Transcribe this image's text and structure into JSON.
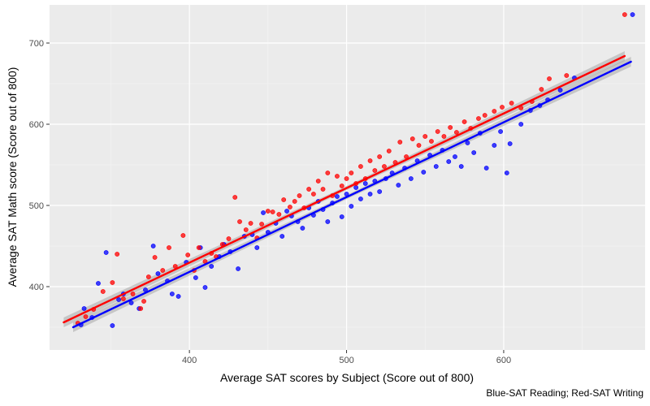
{
  "chart_data": {
    "type": "scatter",
    "title": "",
    "xlabel": "Average SAT scores by Subject (Score out of 800)",
    "ylabel": "Average SAT Math score (Score out of 800)",
    "caption": "Blue-SAT Reading; Red-SAT Writing",
    "xlim": [
      311,
      690
    ],
    "ylim": [
      322,
      747
    ],
    "x_ticks": [
      400,
      500,
      600
    ],
    "y_ticks": [
      400,
      500,
      600,
      700
    ],
    "grid": true,
    "panel_background": "#ebebeb",
    "series": [
      {
        "color": "#0000ff",
        "values": [
          [
            331,
            353
          ],
          [
            333,
            373
          ],
          [
            338,
            362
          ],
          [
            342,
            404
          ],
          [
            347,
            442
          ],
          [
            351,
            352
          ],
          [
            355,
            384
          ],
          [
            358,
            391
          ],
          [
            363,
            380
          ],
          [
            368,
            373
          ],
          [
            372,
            396
          ],
          [
            377,
            450
          ],
          [
            380,
            416
          ],
          [
            386,
            407
          ],
          [
            389,
            391
          ],
          [
            393,
            388
          ],
          [
            398,
            430
          ],
          [
            404,
            411
          ],
          [
            407,
            448
          ],
          [
            410,
            399
          ],
          [
            414,
            425
          ],
          [
            419,
            437
          ],
          [
            422,
            452
          ],
          [
            426,
            443
          ],
          [
            431,
            422
          ],
          [
            435,
            462
          ],
          [
            440,
            464
          ],
          [
            443,
            448
          ],
          [
            447,
            491
          ],
          [
            450,
            467
          ],
          [
            455,
            478
          ],
          [
            459,
            462
          ],
          [
            462,
            493
          ],
          [
            465,
            487
          ],
          [
            469,
            480
          ],
          [
            472,
            472
          ],
          [
            476,
            497
          ],
          [
            479,
            488
          ],
          [
            482,
            505
          ],
          [
            485,
            495
          ],
          [
            488,
            480
          ],
          [
            491,
            503
          ],
          [
            494,
            511
          ],
          [
            497,
            486
          ],
          [
            500,
            514
          ],
          [
            503,
            499
          ],
          [
            506,
            522
          ],
          [
            509,
            508
          ],
          [
            512,
            527
          ],
          [
            515,
            514
          ],
          [
            518,
            530
          ],
          [
            521,
            517
          ],
          [
            525,
            533
          ],
          [
            529,
            540
          ],
          [
            533,
            525
          ],
          [
            537,
            546
          ],
          [
            541,
            533
          ],
          [
            545,
            555
          ],
          [
            549,
            541
          ],
          [
            553,
            562
          ],
          [
            557,
            548
          ],
          [
            561,
            568
          ],
          [
            565,
            554
          ],
          [
            569,
            560
          ],
          [
            573,
            548
          ],
          [
            577,
            577
          ],
          [
            581,
            565
          ],
          [
            585,
            589
          ],
          [
            589,
            546
          ],
          [
            594,
            574
          ],
          [
            598,
            591
          ],
          [
            602,
            540
          ],
          [
            604,
            576
          ],
          [
            611,
            600
          ],
          [
            617,
            617
          ],
          [
            623,
            623
          ],
          [
            628,
            630
          ],
          [
            636,
            642
          ],
          [
            645,
            657
          ],
          [
            682,
            735
          ]
        ]
      },
      {
        "color": "#ff0000",
        "values": [
          [
            329,
            355
          ],
          [
            334,
            363
          ],
          [
            339,
            372
          ],
          [
            345,
            394
          ],
          [
            351,
            405
          ],
          [
            354,
            440
          ],
          [
            358,
            385
          ],
          [
            364,
            391
          ],
          [
            369,
            373
          ],
          [
            371,
            382
          ],
          [
            374,
            412
          ],
          [
            378,
            436
          ],
          [
            383,
            420
          ],
          [
            387,
            448
          ],
          [
            391,
            425
          ],
          [
            396,
            463
          ],
          [
            399,
            439
          ],
          [
            403,
            420
          ],
          [
            406,
            448
          ],
          [
            410,
            431
          ],
          [
            414,
            441
          ],
          [
            417,
            437
          ],
          [
            421,
            452
          ],
          [
            425,
            459
          ],
          [
            429,
            510
          ],
          [
            432,
            480
          ],
          [
            436,
            470
          ],
          [
            439,
            478
          ],
          [
            443,
            460
          ],
          [
            446,
            477
          ],
          [
            450,
            493
          ],
          [
            453,
            492
          ],
          [
            457,
            489
          ],
          [
            460,
            507
          ],
          [
            464,
            498
          ],
          [
            467,
            505
          ],
          [
            470,
            512
          ],
          [
            473,
            497
          ],
          [
            476,
            520
          ],
          [
            479,
            514
          ],
          [
            482,
            530
          ],
          [
            485,
            520
          ],
          [
            488,
            540
          ],
          [
            491,
            512
          ],
          [
            494,
            536
          ],
          [
            497,
            524
          ],
          [
            500,
            533
          ],
          [
            503,
            540
          ],
          [
            506,
            527
          ],
          [
            509,
            548
          ],
          [
            512,
            533
          ],
          [
            515,
            555
          ],
          [
            518,
            543
          ],
          [
            521,
            560
          ],
          [
            524,
            548
          ],
          [
            527,
            567
          ],
          [
            531,
            553
          ],
          [
            534,
            578
          ],
          [
            538,
            560
          ],
          [
            542,
            582
          ],
          [
            546,
            574
          ],
          [
            550,
            585
          ],
          [
            554,
            579
          ],
          [
            558,
            591
          ],
          [
            562,
            585
          ],
          [
            566,
            596
          ],
          [
            570,
            590
          ],
          [
            575,
            603
          ],
          [
            579,
            595
          ],
          [
            584,
            607
          ],
          [
            588,
            611
          ],
          [
            594,
            616
          ],
          [
            599,
            621
          ],
          [
            605,
            626
          ],
          [
            611,
            620
          ],
          [
            618,
            628
          ],
          [
            624,
            643
          ],
          [
            629,
            656
          ],
          [
            640,
            660
          ],
          [
            677,
            735
          ]
        ]
      }
    ],
    "trend_lines": [
      {
        "color": "#0000ff",
        "from": [
          326,
          350
        ],
        "to": [
          681,
          677
        ]
      },
      {
        "color": "#ff0000",
        "from": [
          320,
          356
        ],
        "to": [
          677,
          684
        ]
      }
    ]
  }
}
